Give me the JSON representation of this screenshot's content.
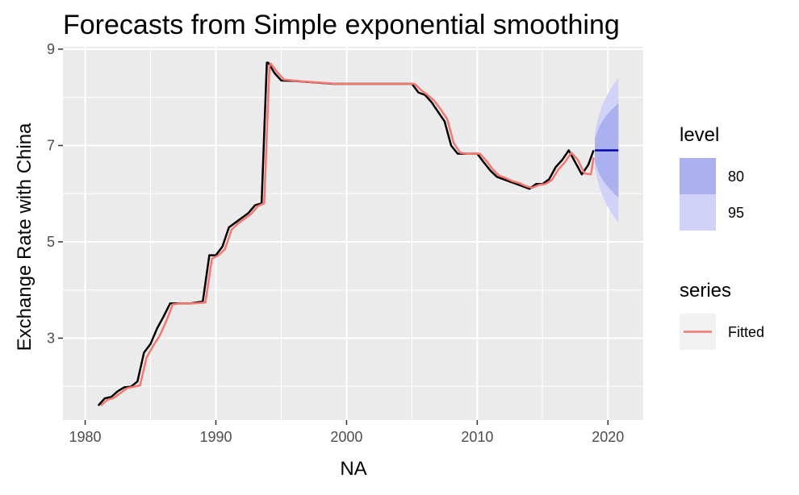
{
  "chart_data": {
    "type": "line",
    "title": "Forecasts from Simple exponential smoothing",
    "xlabel": "NA",
    "ylabel": "Exchange Rate with China",
    "xlim": [
      1978.3,
      2022.7
    ],
    "ylim": [
      1.3,
      9.05
    ],
    "x_ticks": [
      1980,
      1990,
      2000,
      2010,
      2020
    ],
    "y_ticks": [
      3,
      5,
      7,
      9
    ],
    "grid": true,
    "colors": {
      "panel": "#ebebeb",
      "grid": "#ffffff",
      "actual": "#000000",
      "fitted": "#f8766d",
      "forecast": "#0000aa",
      "band80": "#abb0ee",
      "band95": "#d0d3f7",
      "legend_key_bg": "#f2f2f2"
    },
    "series": [
      {
        "role": "actual",
        "x": [
          1981.0,
          1981.5,
          1982.0,
          1982.5,
          1983.0,
          1983.5,
          1984.0,
          1984.5,
          1985.0,
          1985.5,
          1986.0,
          1986.5,
          1987.0,
          1988.0,
          1989.0,
          1989.5,
          1990.0,
          1990.5,
          1991.0,
          1991.5,
          1992.0,
          1992.5,
          1993.0,
          1993.5,
          1993.9,
          1994.0,
          1994.5,
          1995.0,
          1996.0,
          1997.0,
          1998.0,
          1999.0,
          2000.0,
          2001.0,
          2002.0,
          2003.0,
          2004.0,
          2005.0,
          2005.5,
          2006.0,
          2006.5,
          2007.0,
          2007.5,
          2008.0,
          2008.5,
          2009.0,
          2010.0,
          2010.5,
          2011.0,
          2011.5,
          2012.0,
          2012.5,
          2013.0,
          2013.5,
          2014.0,
          2014.5,
          2015.0,
          2015.5,
          2016.0,
          2016.5,
          2017.0,
          2017.5,
          2018.0,
          2018.5,
          2018.9
        ],
        "y": [
          1.6,
          1.75,
          1.78,
          1.9,
          1.98,
          1.99,
          2.1,
          2.7,
          2.88,
          3.2,
          3.45,
          3.72,
          3.72,
          3.72,
          3.76,
          4.72,
          4.72,
          4.9,
          5.3,
          5.4,
          5.5,
          5.6,
          5.76,
          5.8,
          8.72,
          8.72,
          8.5,
          8.35,
          8.34,
          8.32,
          8.3,
          8.28,
          8.28,
          8.28,
          8.28,
          8.28,
          8.28,
          8.28,
          8.1,
          8.05,
          7.9,
          7.7,
          7.5,
          7.0,
          6.83,
          6.83,
          6.83,
          6.65,
          6.48,
          6.35,
          6.3,
          6.25,
          6.2,
          6.15,
          6.1,
          6.2,
          6.2,
          6.3,
          6.55,
          6.7,
          6.9,
          6.65,
          6.4,
          6.6,
          6.9
        ]
      },
      {
        "role": "fitted",
        "name": "Fitted",
        "x": [
          1981.2,
          1981.7,
          1982.2,
          1982.7,
          1983.2,
          1983.7,
          1984.2,
          1984.7,
          1985.2,
          1985.7,
          1986.2,
          1986.7,
          1987.2,
          1988.2,
          1989.2,
          1989.7,
          1990.2,
          1990.7,
          1991.2,
          1991.7,
          1992.2,
          1992.7,
          1993.2,
          1993.7,
          1994.1,
          1994.2,
          1994.7,
          1995.2,
          1996.2,
          1997.2,
          1998.2,
          1999.2,
          2000.2,
          2001.2,
          2002.2,
          2003.2,
          2004.2,
          2005.2,
          2005.7,
          2006.2,
          2006.7,
          2007.2,
          2007.7,
          2008.2,
          2008.7,
          2009.2,
          2010.2,
          2010.7,
          2011.2,
          2011.7,
          2012.2,
          2012.7,
          2013.2,
          2013.7,
          2014.2,
          2014.7,
          2015.2,
          2015.7,
          2016.2,
          2016.7,
          2017.2,
          2017.7,
          2018.2,
          2018.7,
          2018.9
        ],
        "y": [
          1.6,
          1.72,
          1.76,
          1.86,
          1.96,
          1.99,
          2.02,
          2.6,
          2.84,
          3.05,
          3.35,
          3.7,
          3.72,
          3.72,
          3.74,
          4.65,
          4.72,
          4.85,
          5.25,
          5.38,
          5.48,
          5.58,
          5.74,
          5.8,
          8.65,
          8.7,
          8.52,
          8.37,
          8.34,
          8.32,
          8.3,
          8.28,
          8.28,
          8.28,
          8.28,
          8.28,
          8.28,
          8.28,
          8.15,
          8.05,
          7.93,
          7.75,
          7.55,
          7.05,
          6.85,
          6.83,
          6.83,
          6.68,
          6.5,
          6.37,
          6.32,
          6.26,
          6.22,
          6.16,
          6.12,
          6.18,
          6.2,
          6.28,
          6.5,
          6.65,
          6.85,
          6.7,
          6.42,
          6.4,
          6.75
        ]
      },
      {
        "role": "forecast",
        "x": [
          2019.0,
          2020.8
        ],
        "y": [
          6.9,
          6.9
        ]
      }
    ],
    "intervals": [
      {
        "level": "95",
        "x": [
          2019.0,
          2019.3,
          2019.6,
          2019.9,
          2020.2,
          2020.5,
          2020.8
        ],
        "upper": [
          7.28,
          7.62,
          7.86,
          8.03,
          8.17,
          8.29,
          8.41
        ],
        "lower": [
          6.52,
          6.18,
          5.94,
          5.77,
          5.63,
          5.51,
          5.39
        ]
      },
      {
        "level": "80",
        "x": [
          2019.0,
          2019.3,
          2019.6,
          2019.9,
          2020.2,
          2020.5,
          2020.8
        ],
        "upper": [
          7.15,
          7.37,
          7.52,
          7.63,
          7.72,
          7.8,
          7.88
        ],
        "lower": [
          6.65,
          6.43,
          6.28,
          6.17,
          6.08,
          6.0,
          5.92
        ]
      }
    ],
    "legend": {
      "placement": "right",
      "level": {
        "title": "level",
        "items": [
          "80",
          "95"
        ]
      },
      "series": {
        "title": "series",
        "items": [
          "Fitted"
        ]
      }
    }
  }
}
